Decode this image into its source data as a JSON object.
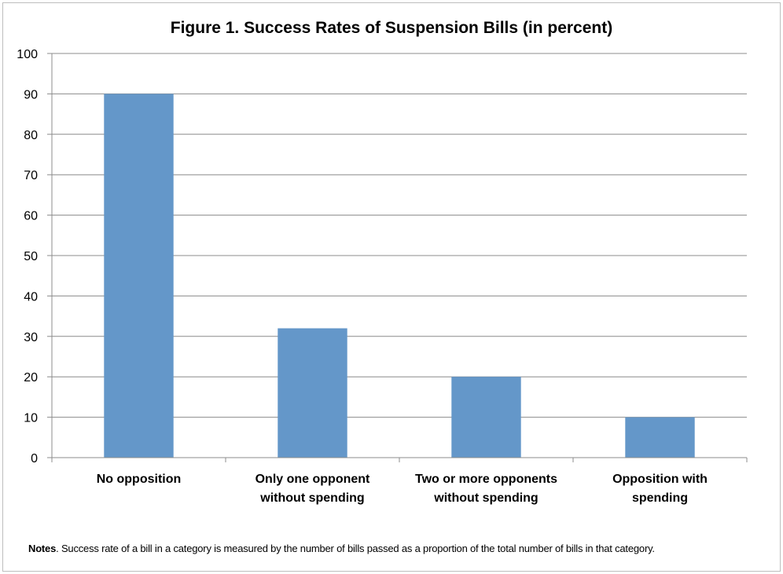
{
  "chart_data": {
    "type": "bar",
    "title": "Figure 1. Success Rates of Suspension Bills (in percent)",
    "categories": [
      [
        "No opposition"
      ],
      [
        "Only one opponent",
        "without spending"
      ],
      [
        "Two or more opponents",
        "without spending"
      ],
      [
        "Opposition with",
        "spending"
      ]
    ],
    "values": [
      90,
      32,
      20,
      10
    ],
    "ylim": [
      0,
      100
    ],
    "yticks": [
      "0",
      "10",
      "20",
      "30",
      "40",
      "50",
      "60",
      "70",
      "80",
      "90",
      "100"
    ],
    "xlabel": "",
    "ylabel": "",
    "grid": true,
    "bar_color": "#6497c9"
  },
  "notes": {
    "label": "Notes",
    "text": ". Success rate of a bill in  a  category is measured by the number of bills passed as a proportion of the total number of bills in that  category."
  }
}
